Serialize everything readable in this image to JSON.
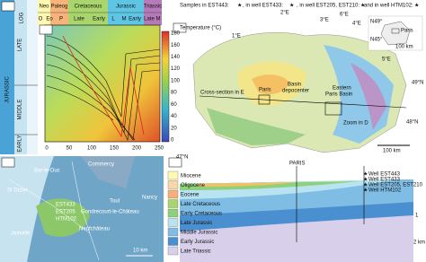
{
  "log_panel": {
    "title": "LOG",
    "system": "JURASSIC",
    "epochs": [
      "LATE",
      "MIDDLE",
      "EARLY"
    ]
  },
  "burial_panel": {
    "periods": [
      "Neo",
      "Paleog",
      "Cretaceous",
      "Jurassic",
      "Triassic"
    ],
    "epochs": [
      "O",
      "Eo",
      "P",
      "Late",
      "Early",
      "L",
      "M",
      "Early",
      "Late",
      "M"
    ],
    "x_ticks": [
      0,
      50,
      100,
      150,
      200,
      250
    ],
    "temperature_label": "Temperature (°C)",
    "temperature_ticks": [
      180,
      160,
      140,
      120,
      100,
      80,
      60,
      40,
      20,
      0
    ]
  },
  "map_panel": {
    "legend": [
      "Samples in EST443:",
      ", in well EST433:",
      ", in well EST205, EST210:",
      "and in well HTM102:"
    ],
    "longitudes": [
      "1°E",
      "2°E",
      "3°E",
      "4°E",
      "5°E",
      "6°E"
    ],
    "latitudes": [
      "49°N",
      "48°N",
      "47°N"
    ],
    "labels": [
      "Paris",
      "Basin",
      "depocenter",
      "Eastern",
      "Paris Basin",
      "Cross-section in E",
      "Zoom in D"
    ],
    "scale": "100 km",
    "inset": {
      "labels": [
        "N49°",
        "N45°",
        "Paris"
      ],
      "scale": "100 km"
    }
  },
  "zoom_panel": {
    "towns": [
      "Bar-le-Duc",
      "St Dizier",
      "Commercy",
      "Toul",
      "Nancy",
      "Joinville",
      "Gondrecourt-le-Château",
      "Neufchâteau"
    ],
    "wells": [
      "EST433",
      "EST205",
      "HTM102"
    ],
    "scale": "10 km"
  },
  "section_panel": {
    "units": [
      "Miocene",
      "Oligocene",
      "Eocene",
      "Late Cretaceous",
      "Early Cretaceous",
      "Late Jurassic",
      "Middle Jurassic",
      "Early Jurassic",
      "Late Triassic"
    ],
    "wells": [
      "Well EST443",
      "Well EST433",
      "Well EST205, EST210",
      "Well HTM102"
    ],
    "city": "PARIS",
    "depth_ticks": [
      "1",
      "2 km"
    ]
  }
}
